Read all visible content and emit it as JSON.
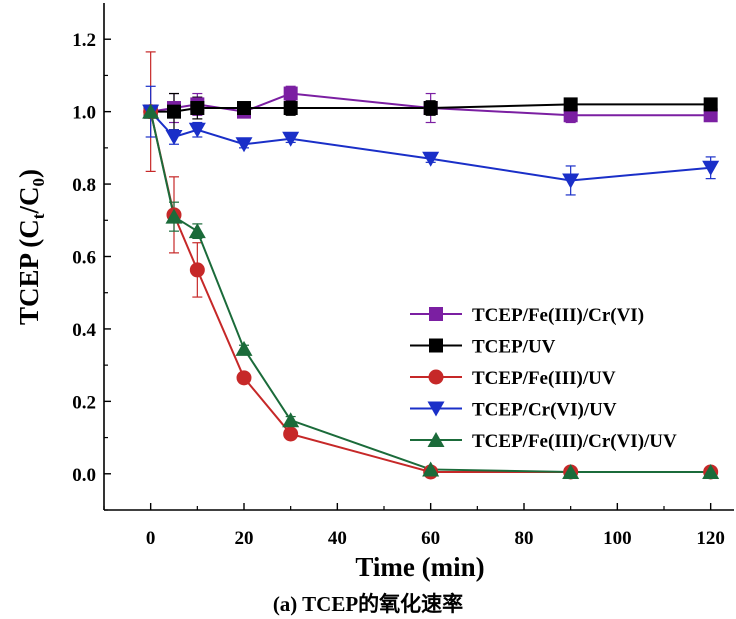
{
  "caption": "(a) TCEP的氧化速率",
  "chart_data": {
    "type": "line",
    "title": "",
    "xlabel": "Time (min)",
    "ylabel_main": "TCEP (C",
    "ylabel_sub_t": "t",
    "ylabel_mid": "/C",
    "ylabel_sub_0": "0",
    "ylabel_end": ")",
    "xlim": [
      -10,
      125
    ],
    "ylim": [
      -0.1,
      1.3
    ],
    "x_ticks": [
      0,
      20,
      40,
      60,
      80,
      100,
      120
    ],
    "x_tick_labels": [
      "0",
      "20",
      "40",
      "60",
      "80",
      "100",
      "120"
    ],
    "y_ticks": [
      0.0,
      0.2,
      0.4,
      0.6,
      0.8,
      1.0,
      1.2
    ],
    "y_tick_labels": [
      "0.0",
      "0.2",
      "0.4",
      "0.6",
      "0.8",
      "1.0",
      "1.2"
    ],
    "legend_position": "lower-right",
    "grid": false,
    "series": [
      {
        "name": "TCEP/Fe(III)/Cr(VI)",
        "color": "#7b1fa2",
        "marker": "square",
        "x": [
          0,
          5,
          10,
          20,
          30,
          60,
          90,
          120
        ],
        "y": [
          1.0,
          1.01,
          1.02,
          1.0,
          1.05,
          1.01,
          0.99,
          0.99
        ],
        "err": [
          0.0,
          0.04,
          0.03,
          0.01,
          0.02,
          0.04,
          0.02,
          0.01
        ]
      },
      {
        "name": "TCEP/UV",
        "color": "#000000",
        "marker": "square",
        "x": [
          0,
          5,
          10,
          20,
          30,
          60,
          90,
          120
        ],
        "y": [
          1.0,
          1.0,
          1.01,
          1.01,
          1.01,
          1.01,
          1.02,
          1.02
        ],
        "err": [
          0.0,
          0.05,
          0.03,
          0.01,
          0.02,
          0.02,
          0.01,
          0.01
        ]
      },
      {
        "name": "TCEP/Fe(III)/UV",
        "color": "#c62828",
        "marker": "circle",
        "x": [
          0,
          5,
          10,
          20,
          30,
          60,
          90,
          120
        ],
        "y": [
          1.0,
          0.715,
          0.563,
          0.265,
          0.11,
          0.005,
          0.005,
          0.005
        ],
        "err": [
          0.165,
          0.105,
          0.075,
          0.01,
          0.01,
          0.0,
          0.0,
          0.0
        ]
      },
      {
        "name": "TCEP/Cr(VI)/UV",
        "color": "#1a2fc8",
        "marker": "triangle-down",
        "x": [
          0,
          5,
          10,
          20,
          30,
          60,
          90,
          120
        ],
        "y": [
          1.0,
          0.93,
          0.95,
          0.91,
          0.925,
          0.87,
          0.81,
          0.845
        ],
        "err": [
          0.07,
          0.02,
          0.02,
          0.01,
          0.01,
          0.01,
          0.04,
          0.03
        ]
      },
      {
        "name": "TCEP/Fe(III)/Cr(VI)/UV",
        "color": "#1b6b3a",
        "marker": "triangle-up",
        "x": [
          0,
          5,
          10,
          20,
          30,
          60,
          90,
          120
        ],
        "y": [
          1.0,
          0.71,
          0.67,
          0.345,
          0.148,
          0.012,
          0.005,
          0.005
        ],
        "err": [
          0.0,
          0.04,
          0.02,
          0.01,
          0.01,
          0.0,
          0.0,
          0.0
        ]
      }
    ]
  }
}
